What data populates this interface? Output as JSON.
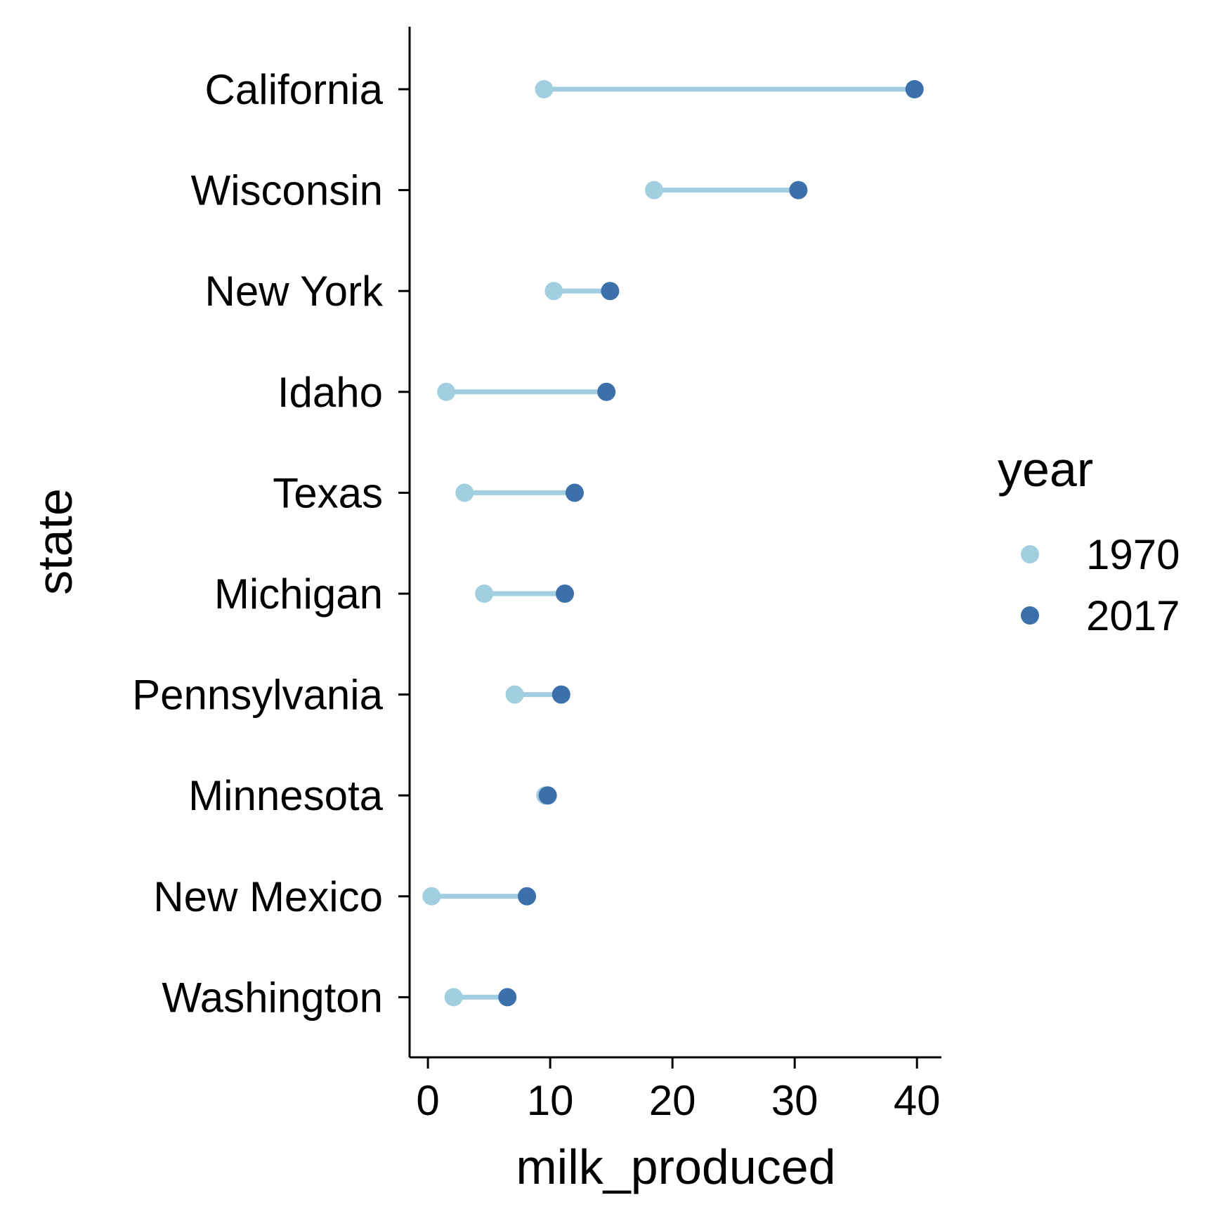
{
  "chart_data": {
    "type": "dumbbell",
    "xlabel": "milk_produced",
    "ylabel": "state",
    "xlim": [
      -1.5,
      42
    ],
    "xticks": [
      0,
      10,
      20,
      30,
      40
    ],
    "grid": false,
    "legend": {
      "title": "year",
      "placement": "right",
      "entries": [
        {
          "name": "1970",
          "color": "#a1cfe0"
        },
        {
          "name": "2017",
          "color": "#3b70aa"
        }
      ]
    },
    "categories": [
      "California",
      "Wisconsin",
      "New York",
      "Idaho",
      "Texas",
      "Michigan",
      "Pennsylvania",
      "Minnesota",
      "New Mexico",
      "Washington"
    ],
    "series": [
      {
        "name": "1970",
        "color": "#a1cfe0",
        "values": [
          9.5,
          18.5,
          10.3,
          1.5,
          3.0,
          4.6,
          7.1,
          9.6,
          0.3,
          2.1
        ]
      },
      {
        "name": "2017",
        "color": "#3b70aa",
        "values": [
          39.8,
          30.3,
          14.9,
          14.6,
          12.0,
          11.2,
          10.9,
          9.8,
          8.1,
          6.5
        ]
      }
    ],
    "connector_color": "#a1cfe0"
  }
}
